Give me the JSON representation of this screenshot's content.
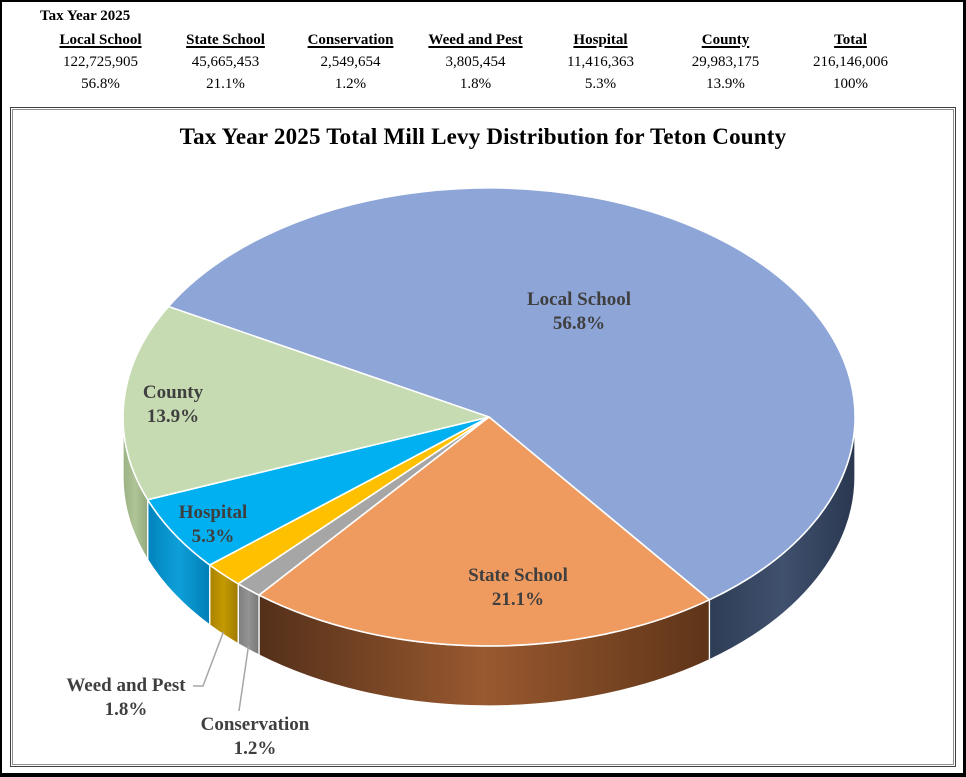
{
  "summary_table": {
    "title": "Tax Year 2025",
    "columns": [
      {
        "label": "Local School",
        "value": "122,725,905",
        "percent": "56.8%"
      },
      {
        "label": "State School",
        "value": "45,665,453",
        "percent": "21.1%"
      },
      {
        "label": "Conservation",
        "value": "2,549,654",
        "percent": "1.2%"
      },
      {
        "label": "Weed and Pest",
        "value": "3,805,454",
        "percent": "1.8%"
      },
      {
        "label": "Hospital",
        "value": "11,416,363",
        "percent": "5.3%"
      },
      {
        "label": "County",
        "value": "29,983,175",
        "percent": "13.9%"
      },
      {
        "label": "Total",
        "value": "216,146,006",
        "percent": "100%"
      }
    ]
  },
  "chart_data": {
    "type": "pie",
    "style": "3d-exploded-none",
    "title": "Tax Year 2025 Total Mill Levy Distribution for Teton County",
    "total_amount": 216146006,
    "total_percent_label": "100%",
    "legend": "none",
    "label_placement": "inside for large slices; outside with gray leader lines for Weed and Pest and Conservation",
    "slices": [
      {
        "label": "Local School",
        "percent": 56.8,
        "amount": 122725905,
        "display_percent": "56.8%",
        "color": "#8EA5D8",
        "side_color": [
          "#2E3C55",
          "#40516E",
          "#2A3750"
        ]
      },
      {
        "label": "State School",
        "percent": 21.1,
        "amount": 45665453,
        "display_percent": "21.1%",
        "color": "#EF9B60",
        "side_color": [
          "#54301A",
          "#99592F",
          "#5E3418"
        ]
      },
      {
        "label": "Conservation",
        "percent": 1.2,
        "amount": 2549654,
        "display_percent": "1.2%",
        "color": "#A6A6A6",
        "side_color": [
          "#7E7E7E",
          "#939393",
          "#777777"
        ]
      },
      {
        "label": "Weed and Pest",
        "percent": 1.8,
        "amount": 3805454,
        "display_percent": "1.8%",
        "color": "#FFC000",
        "side_color": [
          "#A98200",
          "#C49A00",
          "#9E7A00"
        ]
      },
      {
        "label": "Hospital",
        "percent": 5.3,
        "amount": 11416363,
        "display_percent": "5.3%",
        "color": "#00B0F0",
        "side_color": [
          "#0083BC",
          "#0E9FD8",
          "#007FB6"
        ]
      },
      {
        "label": "County",
        "percent": 13.9,
        "amount": 29983175,
        "display_percent": "13.9%",
        "color": "#C6DBB2",
        "side_color": [
          "#9BB284",
          "#AFC497",
          "#93A97D"
        ]
      }
    ],
    "leader_line_color": "#A6A6A6",
    "label_text_color": "#3F3F3F"
  }
}
